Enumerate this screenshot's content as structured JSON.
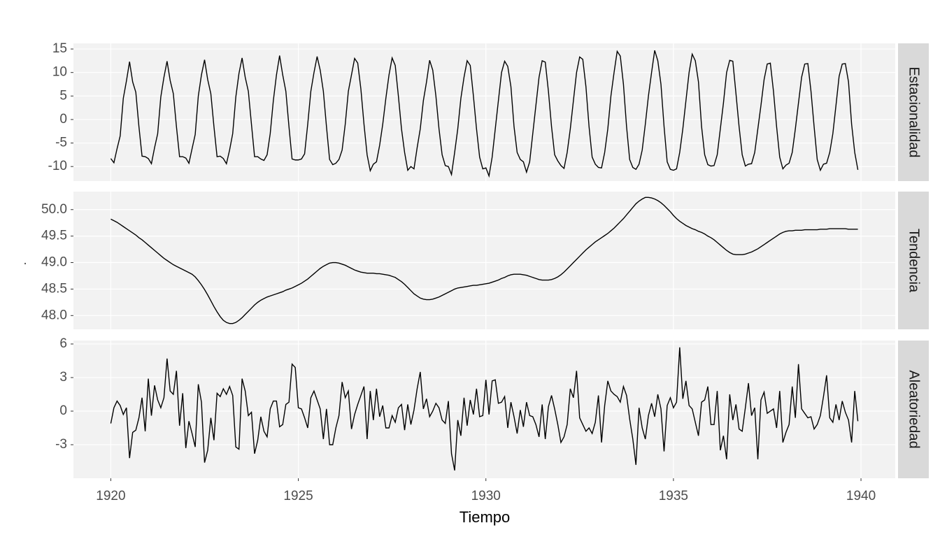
{
  "chart_data": {
    "type": "line",
    "xlabel": "Tiempo",
    "ylabel": ".",
    "xlim": [
      1919.004,
      1940.913
    ],
    "xticks": [
      1920,
      1925,
      1930,
      1935,
      1940
    ],
    "grid": true,
    "color": "#000000",
    "x": [
      1920,
      1920.083,
      1920.167,
      1920.25,
      1920.333,
      1920.417,
      1920.5,
      1920.583,
      1920.667,
      1920.75,
      1920.833,
      1920.917,
      1921,
      1921.083,
      1921.167,
      1921.25,
      1921.333,
      1921.417,
      1921.5,
      1921.583,
      1921.667,
      1921.75,
      1921.833,
      1921.917,
      1922,
      1922.083,
      1922.167,
      1922.25,
      1922.333,
      1922.417,
      1922.5,
      1922.583,
      1922.667,
      1922.75,
      1922.833,
      1922.917,
      1923,
      1923.083,
      1923.167,
      1923.25,
      1923.333,
      1923.417,
      1923.5,
      1923.583,
      1923.667,
      1923.75,
      1923.833,
      1923.917,
      1924,
      1924.083,
      1924.167,
      1924.25,
      1924.333,
      1924.417,
      1924.5,
      1924.583,
      1924.667,
      1924.75,
      1924.833,
      1924.917,
      1925,
      1925.083,
      1925.167,
      1925.25,
      1925.333,
      1925.417,
      1925.5,
      1925.583,
      1925.667,
      1925.75,
      1925.833,
      1925.917,
      1926,
      1926.083,
      1926.167,
      1926.25,
      1926.333,
      1926.417,
      1926.5,
      1926.583,
      1926.667,
      1926.75,
      1926.833,
      1926.917,
      1927,
      1927.083,
      1927.167,
      1927.25,
      1927.333,
      1927.417,
      1927.5,
      1927.583,
      1927.667,
      1927.75,
      1927.833,
      1927.917,
      1928,
      1928.083,
      1928.167,
      1928.25,
      1928.333,
      1928.417,
      1928.5,
      1928.583,
      1928.667,
      1928.75,
      1928.833,
      1928.917,
      1929,
      1929.083,
      1929.167,
      1929.25,
      1929.333,
      1929.417,
      1929.5,
      1929.583,
      1929.667,
      1929.75,
      1929.833,
      1929.917,
      1930,
      1930.083,
      1930.167,
      1930.25,
      1930.333,
      1930.417,
      1930.5,
      1930.583,
      1930.667,
      1930.75,
      1930.833,
      1930.917,
      1931,
      1931.083,
      1931.167,
      1931.25,
      1931.333,
      1931.417,
      1931.5,
      1931.583,
      1931.667,
      1931.75,
      1931.833,
      1931.917,
      1932,
      1932.083,
      1932.167,
      1932.25,
      1932.333,
      1932.417,
      1932.5,
      1932.583,
      1932.667,
      1932.75,
      1932.833,
      1932.917,
      1933,
      1933.083,
      1933.167,
      1933.25,
      1933.333,
      1933.417,
      1933.5,
      1933.583,
      1933.667,
      1933.75,
      1933.833,
      1933.917,
      1934,
      1934.083,
      1934.167,
      1934.25,
      1934.333,
      1934.417,
      1934.5,
      1934.583,
      1934.667,
      1934.75,
      1934.833,
      1934.917,
      1935,
      1935.083,
      1935.167,
      1935.25,
      1935.333,
      1935.417,
      1935.5,
      1935.583,
      1935.667,
      1935.75,
      1935.833,
      1935.917,
      1936,
      1936.083,
      1936.167,
      1936.25,
      1936.333,
      1936.417,
      1936.5,
      1936.583,
      1936.667,
      1936.75,
      1936.833,
      1936.917,
      1937,
      1937.083,
      1937.167,
      1937.25,
      1937.333,
      1937.417,
      1937.5,
      1937.583,
      1937.667,
      1937.75,
      1937.833,
      1937.917,
      1938,
      1938.083,
      1938.167,
      1938.25,
      1938.333,
      1938.417,
      1938.5,
      1938.583,
      1938.667,
      1938.75,
      1938.833,
      1938.917,
      1939,
      1939.083,
      1939.167,
      1939.25,
      1939.333,
      1939.417,
      1939.5,
      1939.583,
      1939.667,
      1939.75,
      1939.833,
      1939.917
    ],
    "series": [
      {
        "name": "Estacionalidad",
        "ylim": [
          -13.1,
          16.2
        ],
        "yticks": [
          -10,
          -5,
          0,
          5,
          10,
          15
        ],
        "values": [
          -8.3,
          -9.2,
          -6.2,
          -3.5,
          4.5,
          8.2,
          12.3,
          8,
          5.8,
          -1.5,
          -7.8,
          -7.9,
          -8.3,
          -9.4,
          -6,
          -3,
          4.8,
          9,
          12.4,
          8.3,
          5.5,
          -1.5,
          -7.9,
          -7.9,
          -8.2,
          -9.3,
          -6.2,
          -3.2,
          5,
          9.5,
          12.7,
          8.5,
          5.5,
          -1.5,
          -7.9,
          -7.8,
          -8.3,
          -9.4,
          -6.5,
          -3,
          4.8,
          9.8,
          13.1,
          9,
          6,
          -1,
          -7.9,
          -7.9,
          -8.4,
          -8.7,
          -7.5,
          -3,
          4,
          9.5,
          13.6,
          9.5,
          6,
          -1.5,
          -8.4,
          -8.6,
          -8.6,
          -8.4,
          -7.3,
          -1,
          6,
          10,
          13.4,
          10.5,
          6,
          -1.5,
          -8.5,
          -9.6,
          -9.3,
          -8.5,
          -6.5,
          -1,
          6,
          9.5,
          13,
          12,
          6.5,
          -1,
          -7.5,
          -10.9,
          -9.5,
          -9,
          -5.5,
          -1,
          4.5,
          9.5,
          13.1,
          11.5,
          5,
          -2,
          -7,
          -10.8,
          -10,
          -10.5,
          -6,
          -2,
          4,
          8,
          12.6,
          10.5,
          5,
          -2,
          -7.5,
          -9.8,
          -10,
          -11.7,
          -7,
          -2,
          4.5,
          9,
          12.5,
          11.5,
          5,
          -2,
          -8,
          -10.5,
          -10.3,
          -12,
          -8,
          -2,
          4,
          10,
          12.4,
          11.3,
          7,
          -1.5,
          -7,
          -8.5,
          -9,
          -11.2,
          -9,
          -3,
          3,
          9,
          12.5,
          12.2,
          6,
          -1.5,
          -7.5,
          -8.8,
          -9.8,
          -10.4,
          -7,
          -2,
          4,
          10,
          13.3,
          12.8,
          7,
          -1.5,
          -8,
          -9.5,
          -10.2,
          -10.3,
          -7,
          -2,
          5,
          10,
          14.5,
          13.5,
          7.5,
          -1.5,
          -8.5,
          -10.2,
          -10.6,
          -9.5,
          -6.5,
          -1,
          5,
          10,
          14.7,
          12.5,
          7.5,
          -1.5,
          -9,
          -10.6,
          -10.8,
          -10.5,
          -7,
          -2,
          4,
          10,
          13.9,
          12.5,
          8,
          -1.5,
          -7.5,
          -9.6,
          -9.9,
          -9.8,
          -7.5,
          -2,
          3.5,
          10,
          12.6,
          12.4,
          5.5,
          -1.5,
          -7.5,
          -9.9,
          -9.5,
          -9.4,
          -7,
          -2,
          3,
          8.5,
          11.8,
          12,
          6,
          -1.5,
          -8,
          -10.5,
          -9.7,
          -9.3,
          -7,
          -2,
          3.5,
          9,
          11.8,
          11.9,
          6,
          -1.5,
          -8.5,
          -10.8,
          -9.5,
          -9.3,
          -7,
          -3,
          3,
          9.2,
          11.8,
          11.9,
          8,
          -1,
          -7,
          -10.7
        ]
      },
      {
        "name": "Tendencia",
        "ylim": [
          47.74,
          50.34
        ],
        "yticks": [
          {
            "value": 48,
            "label": "48.0"
          },
          48.5,
          {
            "value": 49,
            "label": "49.0"
          },
          49.5,
          {
            "value": 50,
            "label": "50.0"
          }
        ],
        "values": [
          49.82,
          49.79,
          49.76,
          49.72,
          49.68,
          49.64,
          49.6,
          49.56,
          49.52,
          49.47,
          49.43,
          49.38,
          49.33,
          49.28,
          49.23,
          49.18,
          49.13,
          49.08,
          49.04,
          49.0,
          48.96,
          48.93,
          48.9,
          48.87,
          48.84,
          48.81,
          48.78,
          48.73,
          48.66,
          48.58,
          48.49,
          48.39,
          48.28,
          48.17,
          48.07,
          47.98,
          47.91,
          47.87,
          47.85,
          47.85,
          47.87,
          47.91,
          47.96,
          48.02,
          48.08,
          48.14,
          48.2,
          48.25,
          48.29,
          48.32,
          48.35,
          48.37,
          48.39,
          48.41,
          48.43,
          48.45,
          48.48,
          48.5,
          48.52,
          48.55,
          48.58,
          48.61,
          48.65,
          48.69,
          48.74,
          48.79,
          48.84,
          48.89,
          48.93,
          48.96,
          48.99,
          49.0,
          49.0,
          48.99,
          48.97,
          48.95,
          48.92,
          48.89,
          48.86,
          48.84,
          48.82,
          48.81,
          48.8,
          48.8,
          48.8,
          48.79,
          48.79,
          48.78,
          48.77,
          48.76,
          48.74,
          48.72,
          48.68,
          48.64,
          48.59,
          48.53,
          48.47,
          48.41,
          48.37,
          48.33,
          48.31,
          48.3,
          48.3,
          48.31,
          48.33,
          48.35,
          48.38,
          48.41,
          48.44,
          48.47,
          48.5,
          48.52,
          48.53,
          48.54,
          48.55,
          48.56,
          48.57,
          48.57,
          48.58,
          48.59,
          48.6,
          48.61,
          48.63,
          48.65,
          48.67,
          48.7,
          48.72,
          48.75,
          48.77,
          48.78,
          48.78,
          48.78,
          48.77,
          48.76,
          48.74,
          48.72,
          48.7,
          48.68,
          48.67,
          48.67,
          48.67,
          48.68,
          48.7,
          48.73,
          48.77,
          48.82,
          48.88,
          48.94,
          49.0,
          49.06,
          49.12,
          49.18,
          49.24,
          49.29,
          49.34,
          49.39,
          49.43,
          49.47,
          49.51,
          49.55,
          49.6,
          49.65,
          49.71,
          49.77,
          49.83,
          49.9,
          49.97,
          50.04,
          50.11,
          50.16,
          50.2,
          50.23,
          50.23,
          50.22,
          50.2,
          50.17,
          50.13,
          50.08,
          50.02,
          49.96,
          49.89,
          49.83,
          49.78,
          49.74,
          49.7,
          49.67,
          49.64,
          49.62,
          49.59,
          49.57,
          49.54,
          49.5,
          49.47,
          49.43,
          49.38,
          49.33,
          49.28,
          49.23,
          49.19,
          49.16,
          49.15,
          49.15,
          49.15,
          49.16,
          49.18,
          49.2,
          49.23,
          49.26,
          49.3,
          49.34,
          49.38,
          49.42,
          49.46,
          49.5,
          49.54,
          49.57,
          49.59,
          49.6,
          49.6,
          49.61,
          49.61,
          49.61,
          49.62,
          49.62,
          49.62,
          49.62,
          49.62,
          49.63,
          49.63,
          49.63,
          49.64,
          49.64,
          49.64,
          49.64,
          49.64,
          49.64,
          49.63,
          49.63,
          49.63,
          49.63
        ]
      },
      {
        "name": "Aleatoriedad",
        "ylim": [
          -6.0,
          6.31
        ],
        "yticks": [
          -3,
          0,
          3,
          6
        ],
        "values": [
          -1.1,
          0.3,
          0.9,
          0.5,
          -0.3,
          0.3,
          -4.2,
          -1.9,
          -1.7,
          -0.6,
          1.2,
          -1.8,
          2.9,
          -0.4,
          2.3,
          1.0,
          0.3,
          1.2,
          4.7,
          1.8,
          1.5,
          3.6,
          -1.3,
          1.6,
          -3.3,
          -0.9,
          -2.0,
          -3.2,
          2.4,
          0.8,
          -4.6,
          -3.5,
          -0.6,
          -2.6,
          1.6,
          1.3,
          2.0,
          1.5,
          2.2,
          1.4,
          -3.2,
          -3.4,
          2.9,
          1.8,
          -0.4,
          -0.1,
          -3.8,
          -2.6,
          -0.5,
          -1.8,
          -2.3,
          0.2,
          0.9,
          0.9,
          -1.4,
          -1.2,
          0.6,
          0.8,
          4.2,
          3.9,
          0.3,
          0.2,
          -0.6,
          -1.5,
          1.2,
          1.8,
          1.0,
          0.2,
          -2.5,
          0.2,
          -3.0,
          -3.0,
          -1.5,
          -0.4,
          2.6,
          1.2,
          1.8,
          -1.6,
          -0.3,
          0.6,
          1.4,
          2.2,
          -2.5,
          1.8,
          -0.8,
          2.0,
          -0.5,
          0.5,
          -1.5,
          -1.5,
          -0.4,
          -1.0,
          0.3,
          0.6,
          -1.7,
          0.6,
          -1.2,
          0.1,
          2.0,
          3.5,
          0.2,
          1.1,
          -0.5,
          0.0,
          0.7,
          0.3,
          -0.8,
          -1.1,
          0.9,
          -3.8,
          -5.3,
          -0.8,
          -2.2,
          1.2,
          -1.3,
          1.0,
          -0.3,
          2.0,
          -0.5,
          -0.4,
          2.8,
          -0.3,
          2.7,
          2.8,
          0.7,
          0.8,
          1.3,
          -1.5,
          0.8,
          -0.5,
          -2.0,
          0.1,
          -1.4,
          0.8,
          -0.4,
          -0.5,
          -1.2,
          -2.3,
          0.6,
          -2.5,
          0.4,
          1.4,
          0.2,
          -1.2,
          -2.8,
          -2.3,
          -1.2,
          2.0,
          1.2,
          3.6,
          -0.6,
          -1.2,
          -1.8,
          -1.5,
          -2.0,
          -1.0,
          1.4,
          -2.8,
          0.5,
          2.7,
          1.8,
          1.5,
          1.3,
          0.8,
          2.2,
          1.4,
          -0.7,
          -2.5,
          -4.8,
          0.3,
          -1.5,
          -2.5,
          -0.4,
          0.7,
          -0.5,
          1.5,
          0.2,
          -3.6,
          0.5,
          1.2,
          0.3,
          0.8,
          5.7,
          1.1,
          2.7,
          0.5,
          0.2,
          -1.0,
          -2.2,
          0.8,
          1.0,
          2.2,
          -1.2,
          -1.2,
          1.8,
          -3.5,
          -2.2,
          -4.3,
          1.5,
          -0.8,
          0.6,
          -1.6,
          -1.8,
          0.3,
          2.5,
          -0.4,
          0.3,
          -4.3,
          1.0,
          1.7,
          -0.2,
          0.0,
          0.2,
          -1.5,
          1.8,
          -2.8,
          -1.9,
          -1.2,
          2.2,
          -0.6,
          4.2,
          0.2,
          -0.2,
          -0.6,
          -0.5,
          -1.6,
          -1.2,
          -0.4,
          1.3,
          3.2,
          -0.6,
          -1.0,
          0.6,
          -0.8,
          0.9,
          -0.1,
          -0.8,
          -2.8,
          1.8,
          -0.9
        ]
      }
    ]
  }
}
